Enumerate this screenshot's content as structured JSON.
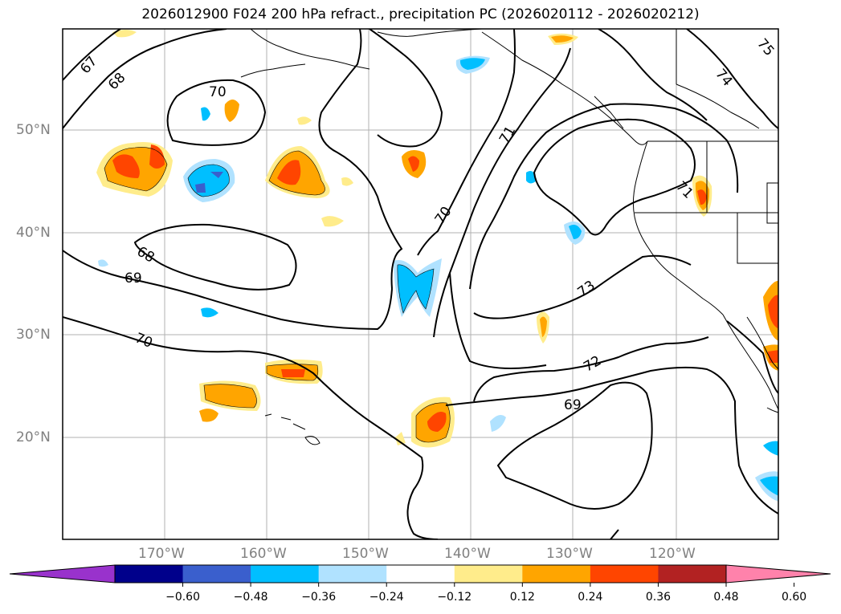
{
  "title": "2026012900 F024 200 hPa refract., precipitation PC (2026020112 - 2026020212)",
  "lat_labels": [
    "50°N",
    "40°N",
    "30°N",
    "20°N"
  ],
  "lon_labels": [
    "170°W",
    "160°W",
    "150°W",
    "140°W",
    "130°W",
    "120°W"
  ],
  "contour_labels": [
    "67",
    "68",
    "69",
    "70",
    "70",
    "70",
    "71",
    "72",
    "73",
    "74",
    "75",
    "69",
    "68",
    "71"
  ],
  "colorbar": {
    "ticks": [
      "−0.60",
      "−0.48",
      "−0.36",
      "−0.24",
      "−0.12",
      "0.12",
      "0.24",
      "0.36",
      "0.48",
      "0.60"
    ],
    "colors": [
      "#9932cc",
      "#00008b",
      "#3a5fcd",
      "#00bfff",
      "#b0e2ff",
      "#ffffff",
      "#ffec8b",
      "#ffa500",
      "#ff4500",
      "#b22222",
      "#ff82ab"
    ]
  },
  "colors": {
    "frame": "#000000",
    "grid": "#b0b0b0",
    "land": "#000000",
    "neg_light": "#b0e2ff",
    "neg_mid": "#00bfff",
    "neg_dark": "#3a5fcd",
    "pos_light": "#ffec8b",
    "pos_mid": "#ffa500",
    "pos_dark": "#ff4500"
  }
}
